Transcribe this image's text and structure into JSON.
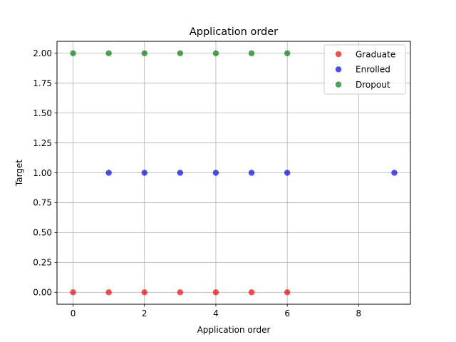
{
  "chart_data": {
    "type": "scatter",
    "title": "Application order",
    "xlabel": "Application order",
    "ylabel": "Target",
    "xlim": [
      -0.45,
      9.45
    ],
    "ylim": [
      -0.1,
      2.1
    ],
    "xticks": [
      0,
      2,
      4,
      6,
      8
    ],
    "xtick_labels": [
      "0",
      "2",
      "4",
      "6",
      "8"
    ],
    "yticks": [
      0,
      0.25,
      0.5,
      0.75,
      1,
      1.25,
      1.5,
      1.75,
      2
    ],
    "ytick_labels": [
      "0.00",
      "0.25",
      "0.50",
      "0.75",
      "1.00",
      "1.25",
      "1.50",
      "1.75",
      "2.00"
    ],
    "grid": true,
    "legend_position": "top-right",
    "series": [
      {
        "name": "Graduate",
        "color": "#ff0000",
        "x": [
          0,
          1,
          2,
          3,
          4,
          5,
          6
        ],
        "y": [
          0,
          0,
          0,
          0,
          0,
          0,
          0
        ]
      },
      {
        "name": "Enrolled",
        "color": "#0000ff",
        "x": [
          1,
          2,
          3,
          4,
          5,
          6,
          9
        ],
        "y": [
          1,
          1,
          1,
          1,
          1,
          1,
          1
        ]
      },
      {
        "name": "Dropout",
        "color": "#008000",
        "x": [
          0,
          1,
          2,
          3,
          4,
          5,
          6
        ],
        "y": [
          2,
          2,
          2,
          2,
          2,
          2,
          2
        ]
      }
    ]
  }
}
